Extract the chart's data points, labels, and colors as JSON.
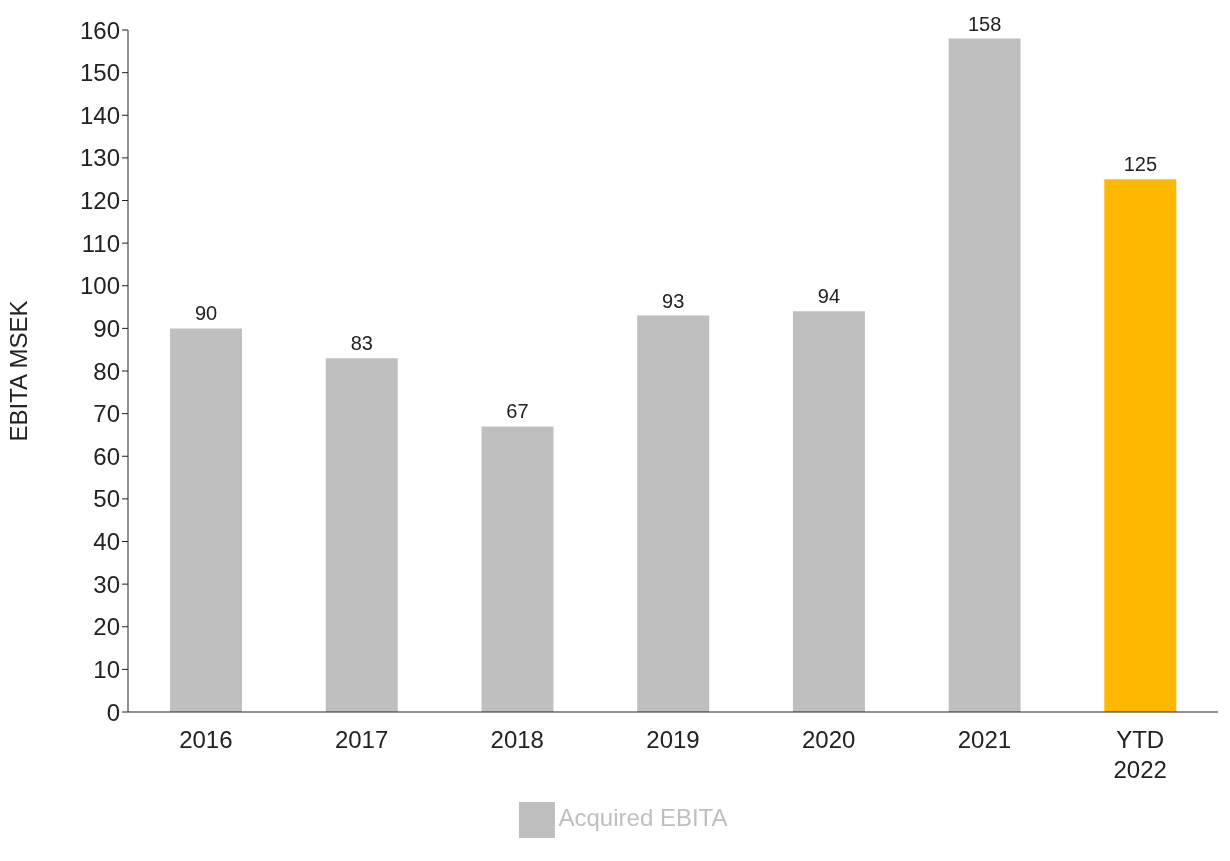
{
  "chart_data": {
    "type": "bar",
    "ylabel": "EBITA MSEK",
    "categories": [
      "2016",
      "2017",
      "2018",
      "2019",
      "2020",
      "2021",
      "YTD 2022"
    ],
    "series": [
      {
        "name": "Acquired EBITA",
        "color": "#bfbfbf",
        "colors": [
          "#bfbfbf",
          "#bfbfbf",
          "#bfbfbf",
          "#bfbfbf",
          "#bfbfbf",
          "#bfbfbf",
          "#ffb800"
        ],
        "values": [
          90,
          83,
          67,
          93,
          94,
          158,
          125
        ]
      }
    ],
    "ylim": [
      0,
      160
    ],
    "yticks": [
      0,
      10,
      20,
      30,
      40,
      50,
      60,
      70,
      80,
      90,
      100,
      110,
      120,
      130,
      140,
      150,
      160
    ],
    "grid": false,
    "legend": "bottom",
    "data_labels": true
  }
}
